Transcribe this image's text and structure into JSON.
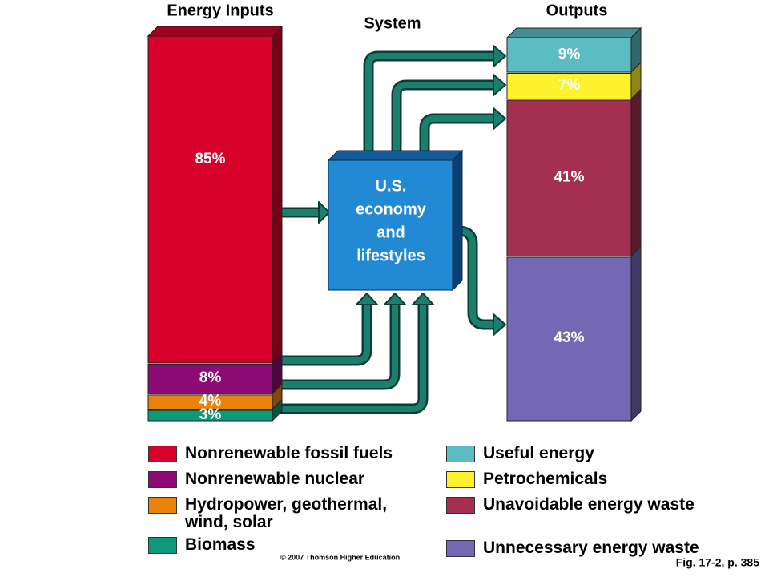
{
  "header": {
    "inputs": "Energy Inputs",
    "system": "System",
    "outputs": "Outputs"
  },
  "system_label": [
    "U.S.",
    "economy",
    "and",
    "lifestyles"
  ],
  "inputs": [
    {
      "name": "Nonrenewable fossil fuels",
      "color": "#d6002a",
      "value": 85,
      "value_label": "85%"
    },
    {
      "name": "Nonrenewable nuclear",
      "color": "#8e0a74",
      "value": 8,
      "value_label": "8%"
    },
    {
      "name": "Hydropower, geothermal, wind, solar",
      "color": "#e8820c",
      "value": 4,
      "value_label": "4%"
    },
    {
      "name": "Biomass",
      "color": "#0d9a78",
      "value": 3,
      "value_label": "3%"
    }
  ],
  "outputs": [
    {
      "name": "Useful energy",
      "color": "#5bbcc4",
      "value": 9,
      "value_label": "9%"
    },
    {
      "name": "Petrochemicals",
      "color": "#fef22c",
      "value": 7,
      "value_label": "7%"
    },
    {
      "name": "Unavoidable energy waste",
      "color": "#a33050",
      "value": 41,
      "value_label": "41%"
    },
    {
      "name": "Unnecessary energy waste",
      "color": "#7468b4",
      "value": 43,
      "value_label": "43%"
    }
  ],
  "footer": {
    "copyright": "© 2007 Thomson Higher Education",
    "figure": "Fig. 17-2, p. 385"
  }
}
